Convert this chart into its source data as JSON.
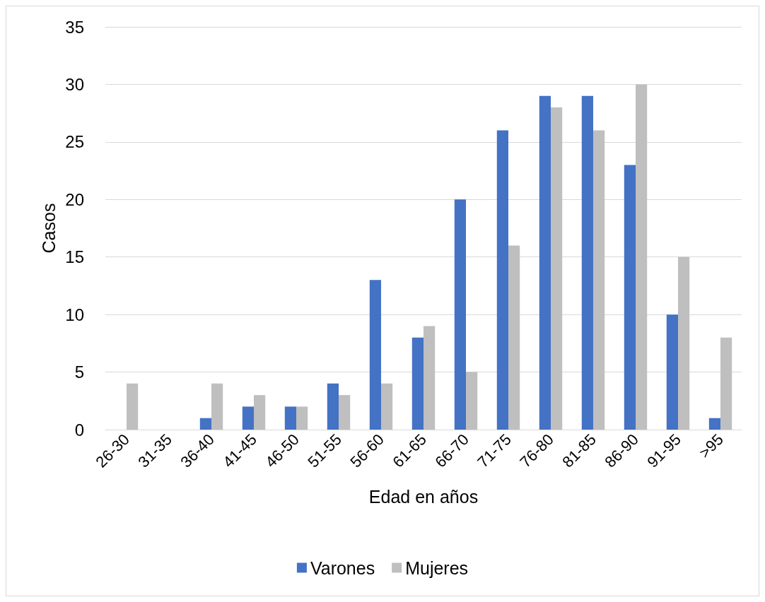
{
  "chart_data": {
    "type": "bar",
    "xlabel": "Edad en años",
    "ylabel": "Casos",
    "categories": [
      "26-30",
      "31-35",
      "36-40",
      "41-45",
      "46-50",
      "51-55",
      "56-60",
      "61-65",
      "66-70",
      "71-75",
      "76-80",
      "81-85",
      "86-90",
      "91-95",
      ">95"
    ],
    "series": [
      {
        "name": "Varones",
        "color": "#4472c4",
        "values": [
          0,
          0,
          1,
          2,
          2,
          4,
          13,
          8,
          20,
          26,
          29,
          29,
          23,
          10,
          1
        ]
      },
      {
        "name": "Mujeres",
        "color": "#bfbfbf",
        "values": [
          4,
          0,
          4,
          3,
          2,
          3,
          4,
          9,
          5,
          16,
          28,
          26,
          30,
          15,
          8
        ]
      }
    ],
    "ylim": [
      0,
      35
    ],
    "yticks": [
      0,
      5,
      10,
      15,
      20,
      25,
      30,
      35
    ],
    "grid": "y",
    "legend": "bottom"
  }
}
